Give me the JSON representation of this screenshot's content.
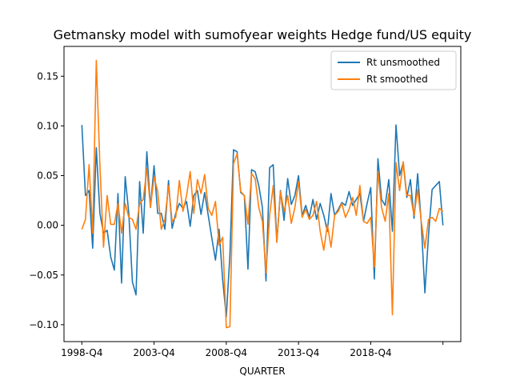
{
  "chart_data": {
    "type": "line",
    "title": "Getmansky model with sumofyear weights Hedge fund/US equity",
    "xlabel": "QUARTER",
    "ylabel": "",
    "x_start_label": "1998-Q4",
    "x_tick_labels": [
      "1998-Q4",
      "2003-Q4",
      "2008-Q4",
      "2013-Q4",
      "2018-Q4",
      ""
    ],
    "y_ticks": [
      -0.1,
      -0.05,
      0.0,
      0.05,
      0.1,
      0.15
    ],
    "y_tick_labels": [
      "−0.10",
      "−0.05",
      "0.00",
      "0.05",
      "0.10",
      "0.15"
    ],
    "ylim": [
      -0.117,
      0.18
    ],
    "grid": false,
    "legend_position": "upper right",
    "series": [
      {
        "name": "Rt unsmoothed",
        "color": "#1f77b4",
        "values": [
          0.101,
          0.03,
          0.035,
          -0.023,
          0.078,
          0.012,
          -0.008,
          -0.005,
          -0.032,
          -0.045,
          0.032,
          -0.058,
          0.049,
          0.012,
          -0.057,
          -0.07,
          0.044,
          -0.008,
          0.074,
          0.018,
          0.06,
          0.012,
          0.012,
          -0.004,
          0.045,
          -0.003,
          0.012,
          0.022,
          0.017,
          0.024,
          -0.001,
          0.03,
          0.035,
          0.011,
          0.033,
          0.01,
          -0.013,
          -0.035,
          -0.004,
          -0.055,
          -0.092,
          -0.03,
          0.076,
          0.074,
          0.033,
          0.03,
          -0.044,
          0.056,
          0.054,
          0.04,
          0.018,
          -0.056,
          0.058,
          0.061,
          -0.017,
          0.035,
          0.005,
          0.047,
          0.021,
          0.03,
          0.05,
          0.01,
          0.02,
          0.008,
          0.026,
          0.006,
          0.022,
          0.01,
          -0.006,
          0.032,
          0.01,
          0.016,
          0.023,
          0.02,
          0.034,
          0.02,
          0.026,
          0.032,
          0.004,
          0.022,
          0.038,
          -0.054,
          0.067,
          0.026,
          0.02,
          0.046,
          -0.006,
          0.101,
          0.05,
          0.063,
          0.028,
          0.046,
          0.007,
          0.052,
          0.002,
          -0.068,
          -0.01,
          0.036,
          0.04,
          0.044,
          0.0
        ]
      },
      {
        "name": "Rt smoothed",
        "color": "#ff7f0e",
        "values": [
          -0.004,
          0.006,
          0.061,
          -0.008,
          0.166,
          0.06,
          -0.022,
          0.03,
          0.001,
          0.001,
          0.022,
          -0.008,
          0.022,
          0.008,
          0.006,
          -0.004,
          0.022,
          0.026,
          0.057,
          0.018,
          0.049,
          0.034,
          -0.004,
          0.006,
          0.04,
          0.004,
          0.008,
          0.045,
          0.014,
          0.03,
          0.054,
          0.012,
          0.046,
          0.032,
          0.051,
          0.017,
          0.01,
          0.024,
          -0.02,
          -0.012,
          -0.103,
          -0.102,
          0.062,
          0.072,
          0.034,
          0.03,
          0.001,
          0.052,
          0.047,
          0.018,
          0.004,
          -0.048,
          0.01,
          0.04,
          -0.017,
          0.034,
          0.014,
          0.03,
          0.002,
          0.018,
          0.044,
          0.008,
          0.016,
          0.006,
          0.01,
          0.024,
          -0.006,
          -0.025,
          0.001,
          -0.022,
          0.01,
          0.014,
          0.022,
          0.008,
          0.016,
          0.028,
          0.01,
          0.04,
          0.004,
          0.002,
          0.008,
          -0.042,
          0.054,
          0.018,
          0.004,
          0.032,
          -0.09,
          0.063,
          0.035,
          0.064,
          0.03,
          0.03,
          0.01,
          0.036,
          0.004,
          -0.023,
          0.006,
          0.008,
          0.004,
          0.017,
          0.014
        ]
      }
    ]
  }
}
